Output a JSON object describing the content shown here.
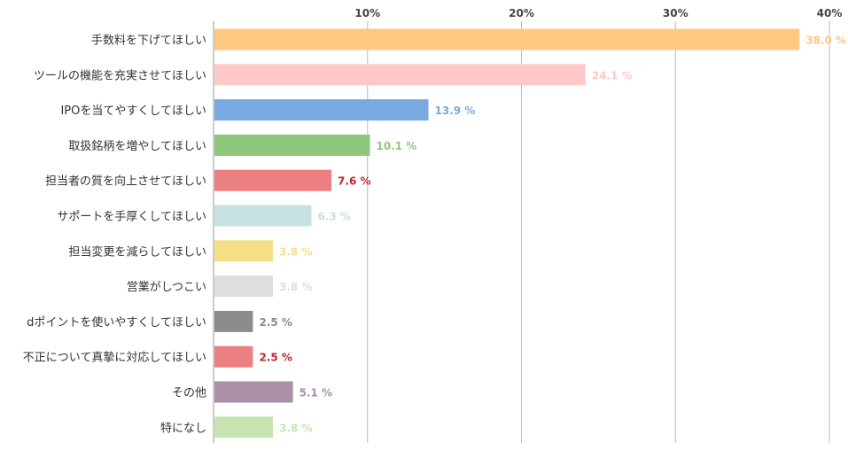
{
  "chart_data": {
    "type": "bar",
    "orientation": "horizontal",
    "x_ticks": [
      "10%",
      "20%",
      "30%",
      "40%"
    ],
    "xlim": [
      0,
      40
    ],
    "grid": true,
    "categories": [
      "手数料を下げてほしい",
      "ツールの機能を充実させてほしい",
      "IPOを当てやすくしてほしい",
      "取扱銘柄を増やしてほしい",
      "担当者の質を向上させてほしい",
      "サポートを手厚くしてほしい",
      "担当変更を減らしてほしい",
      "営業がしつこい",
      "dポイントを使いやすくしてほしい",
      "不正について真摯に対応してほしい",
      "その他",
      "特になし"
    ],
    "values": [
      38.0,
      24.1,
      13.9,
      10.1,
      7.6,
      6.3,
      3.8,
      3.8,
      2.5,
      2.5,
      5.1,
      3.8
    ],
    "value_labels": [
      "38.0 %",
      "24.1 %",
      "13.9 %",
      "10.1 %",
      "7.6 %",
      "6.3 %",
      "3.8 %",
      "3.8 %",
      "2.5 %",
      "2.5 %",
      "5.1 %",
      "3.8 %"
    ],
    "colors": [
      "#fcc97f",
      "#fdc8c8",
      "#79a9e0",
      "#8fc77c",
      "#ec7f82",
      "#c6e2e3",
      "#f5df84",
      "#dedede",
      "#8c8c8c",
      "#ec7f82",
      "#ab8ea7",
      "#c6e3b1"
    ],
    "label_colors": [
      "#fcc97f",
      "#fdc8c8",
      "#79a9e0",
      "#8fc77c",
      "#c0272d",
      "#c6e2e3",
      "#f5df84",
      "#dedede",
      "#8c8c8c",
      "#c0272d",
      "#ab8ea7",
      "#c6e3b1"
    ]
  }
}
